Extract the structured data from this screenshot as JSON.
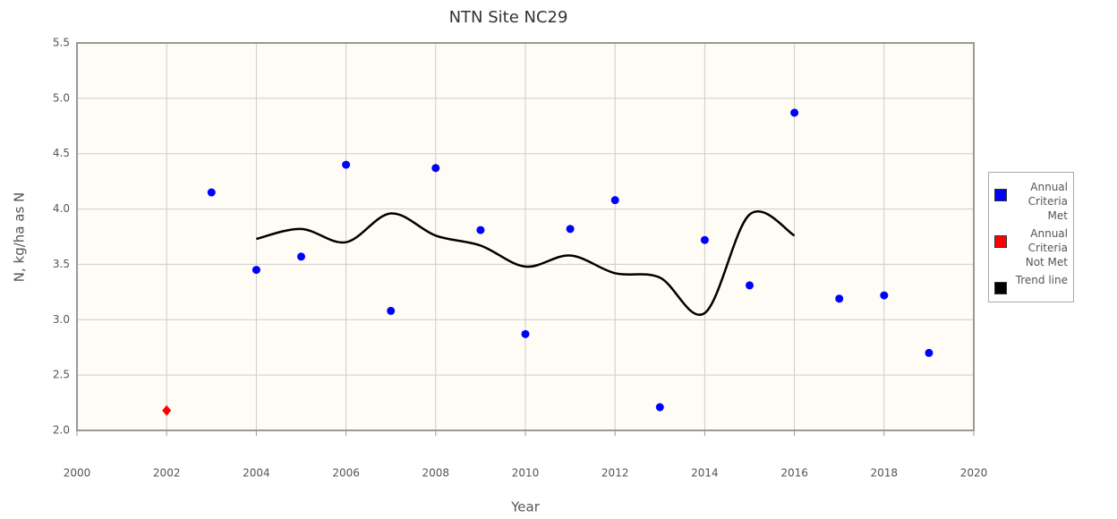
{
  "chart_data": {
    "type": "scatter",
    "title": "NTN Site NC29",
    "x_label": "Year",
    "y_label": "N, kg/ha as N",
    "xlim": [
      2000,
      2020
    ],
    "xticks": [
      2000,
      2002,
      2004,
      2006,
      2008,
      2010,
      2012,
      2014,
      2016,
      2018,
      2020
    ],
    "ylim": [
      2,
      5.5
    ],
    "yticks": [
      {
        "value": 2,
        "label": "2.0"
      },
      2.5,
      {
        "value": 3,
        "label": "3.0"
      },
      3.5,
      {
        "value": 4,
        "label": "4.0"
      },
      4.5,
      {
        "value": 5,
        "label": "5.0"
      },
      5.5
    ],
    "grid": true,
    "legend": "right",
    "series": [
      {
        "name": "Annual Criteria Met",
        "color": "#0000ff",
        "marker": "circle",
        "x": [
          2003,
          2004,
          2005,
          2006,
          2007,
          2008,
          2009,
          2010,
          2011,
          2012,
          2013,
          2014,
          2015,
          2016,
          2017,
          2018,
          2019
        ],
        "values": [
          4.15,
          3.45,
          3.57,
          4.4,
          3.08,
          4.37,
          3.81,
          2.87,
          3.82,
          4.08,
          2.21,
          3.72,
          3.31,
          4.87,
          3.19,
          3.22,
          2.7
        ]
      },
      {
        "name": "Annual Criteria Not Met",
        "color": "#ff0000",
        "marker": "diamond",
        "x": [
          2002
        ],
        "values": [
          2.18
        ]
      },
      {
        "name": "Trend line",
        "color": "#000000",
        "marker": "line",
        "x": [
          2004,
          2005,
          2006,
          2007,
          2008,
          2009,
          2010,
          2011,
          2012,
          2013,
          2014,
          2015,
          2016
        ],
        "values": [
          3.73,
          3.82,
          3.7,
          3.96,
          3.76,
          3.67,
          3.48,
          3.58,
          3.42,
          3.38,
          3.06,
          3.95,
          3.76
        ]
      }
    ]
  }
}
